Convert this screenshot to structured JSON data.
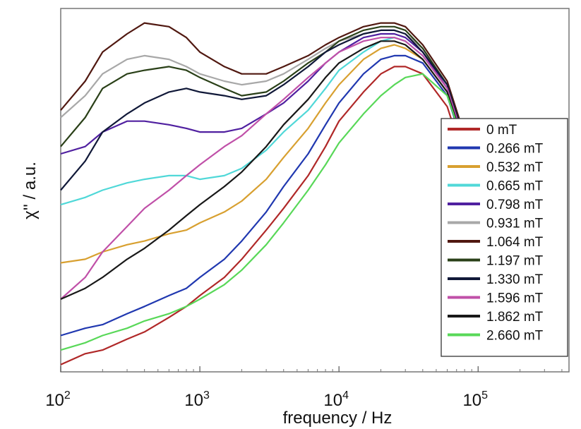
{
  "chart_data": {
    "type": "line",
    "xlabel": "frequency / Hz",
    "ylabel": "χ'' / a.u.",
    "xscale": "log",
    "xlim": [
      100,
      450000
    ],
    "ylim": [
      0,
      1
    ],
    "x_ticks": [
      {
        "base": "10",
        "exp": "2",
        "value": 100
      },
      {
        "base": "10",
        "exp": "3",
        "value": 1000
      },
      {
        "base": "10",
        "exp": "4",
        "value": 10000
      },
      {
        "base": "10",
        "exp": "5",
        "value": 100000
      }
    ],
    "y_ticks_shown": false,
    "legend_position": "right",
    "x": [
      100,
      150,
      200,
      300,
      400,
      600,
      800,
      1000,
      1500,
      2000,
      3000,
      4000,
      6000,
      8000,
      10000,
      15000,
      20000,
      25000,
      30000,
      40000,
      60000,
      80000,
      100000
    ],
    "series": [
      {
        "name": "0 mT",
        "color": "#b02828",
        "values": [
          0.02,
          0.05,
          0.06,
          0.09,
          0.11,
          0.15,
          0.18,
          0.21,
          0.26,
          0.31,
          0.39,
          0.45,
          0.54,
          0.62,
          0.69,
          0.77,
          0.82,
          0.84,
          0.84,
          0.82,
          0.73,
          0.58,
          0.42
        ]
      },
      {
        "name": "0.266 mT",
        "color": "#2038b0",
        "values": [
          0.1,
          0.12,
          0.13,
          0.16,
          0.18,
          0.21,
          0.23,
          0.26,
          0.31,
          0.36,
          0.44,
          0.51,
          0.6,
          0.68,
          0.74,
          0.82,
          0.86,
          0.87,
          0.87,
          0.85,
          0.76,
          0.61,
          0.44
        ]
      },
      {
        "name": "0.532 mT",
        "color": "#d8a030",
        "values": [
          0.3,
          0.31,
          0.33,
          0.35,
          0.36,
          0.38,
          0.39,
          0.41,
          0.44,
          0.47,
          0.53,
          0.59,
          0.67,
          0.74,
          0.79,
          0.86,
          0.89,
          0.9,
          0.89,
          0.86,
          0.77,
          0.62,
          0.45
        ]
      },
      {
        "name": "0.665 mT",
        "color": "#50d8d8",
        "values": [
          0.46,
          0.48,
          0.5,
          0.52,
          0.53,
          0.54,
          0.54,
          0.53,
          0.54,
          0.56,
          0.61,
          0.66,
          0.72,
          0.78,
          0.83,
          0.88,
          0.91,
          0.92,
          0.91,
          0.87,
          0.78,
          0.63,
          0.46
        ]
      },
      {
        "name": "0.798 mT",
        "color": "#5020a0",
        "values": [
          0.6,
          0.62,
          0.66,
          0.69,
          0.69,
          0.68,
          0.67,
          0.66,
          0.66,
          0.67,
          0.71,
          0.74,
          0.8,
          0.85,
          0.88,
          0.92,
          0.93,
          0.93,
          0.92,
          0.88,
          0.78,
          0.63,
          0.46
        ]
      },
      {
        "name": "0.931 mT",
        "color": "#a8a8a8",
        "values": [
          0.7,
          0.76,
          0.82,
          0.86,
          0.87,
          0.86,
          0.84,
          0.82,
          0.8,
          0.79,
          0.8,
          0.82,
          0.86,
          0.89,
          0.91,
          0.93,
          0.94,
          0.94,
          0.93,
          0.89,
          0.79,
          0.64,
          0.47
        ]
      },
      {
        "name": "1.064 mT",
        "color": "#501810",
        "values": [
          0.72,
          0.8,
          0.88,
          0.93,
          0.96,
          0.95,
          0.92,
          0.88,
          0.84,
          0.82,
          0.82,
          0.84,
          0.87,
          0.9,
          0.92,
          0.95,
          0.96,
          0.96,
          0.95,
          0.9,
          0.8,
          0.65,
          0.48
        ]
      },
      {
        "name": "1.197 mT",
        "color": "#2a4018",
        "values": [
          0.62,
          0.7,
          0.78,
          0.82,
          0.83,
          0.84,
          0.83,
          0.81,
          0.78,
          0.76,
          0.77,
          0.8,
          0.85,
          0.88,
          0.91,
          0.94,
          0.95,
          0.95,
          0.94,
          0.89,
          0.79,
          0.64,
          0.47
        ]
      },
      {
        "name": "1.330 mT",
        "color": "#101838",
        "values": [
          0.5,
          0.58,
          0.66,
          0.71,
          0.74,
          0.77,
          0.78,
          0.77,
          0.76,
          0.75,
          0.76,
          0.79,
          0.84,
          0.88,
          0.9,
          0.93,
          0.94,
          0.94,
          0.93,
          0.88,
          0.79,
          0.64,
          0.47
        ]
      },
      {
        "name": "1.596 mT",
        "color": "#c050a8",
        "values": [
          0.2,
          0.26,
          0.33,
          0.4,
          0.45,
          0.5,
          0.54,
          0.57,
          0.62,
          0.65,
          0.71,
          0.75,
          0.81,
          0.85,
          0.88,
          0.91,
          0.92,
          0.92,
          0.91,
          0.87,
          0.78,
          0.63,
          0.46
        ]
      },
      {
        "name": "1.862 mT",
        "color": "#181818",
        "values": [
          0.2,
          0.23,
          0.26,
          0.31,
          0.34,
          0.39,
          0.43,
          0.46,
          0.51,
          0.55,
          0.62,
          0.68,
          0.75,
          0.81,
          0.85,
          0.89,
          0.91,
          0.91,
          0.9,
          0.86,
          0.77,
          0.62,
          0.45
        ]
      },
      {
        "name": "2.660 mT",
        "color": "#58d858",
        "values": [
          0.06,
          0.08,
          0.1,
          0.12,
          0.14,
          0.16,
          0.18,
          0.2,
          0.24,
          0.28,
          0.35,
          0.41,
          0.5,
          0.57,
          0.63,
          0.71,
          0.76,
          0.79,
          0.81,
          0.82,
          0.76,
          0.62,
          0.45
        ]
      }
    ]
  }
}
